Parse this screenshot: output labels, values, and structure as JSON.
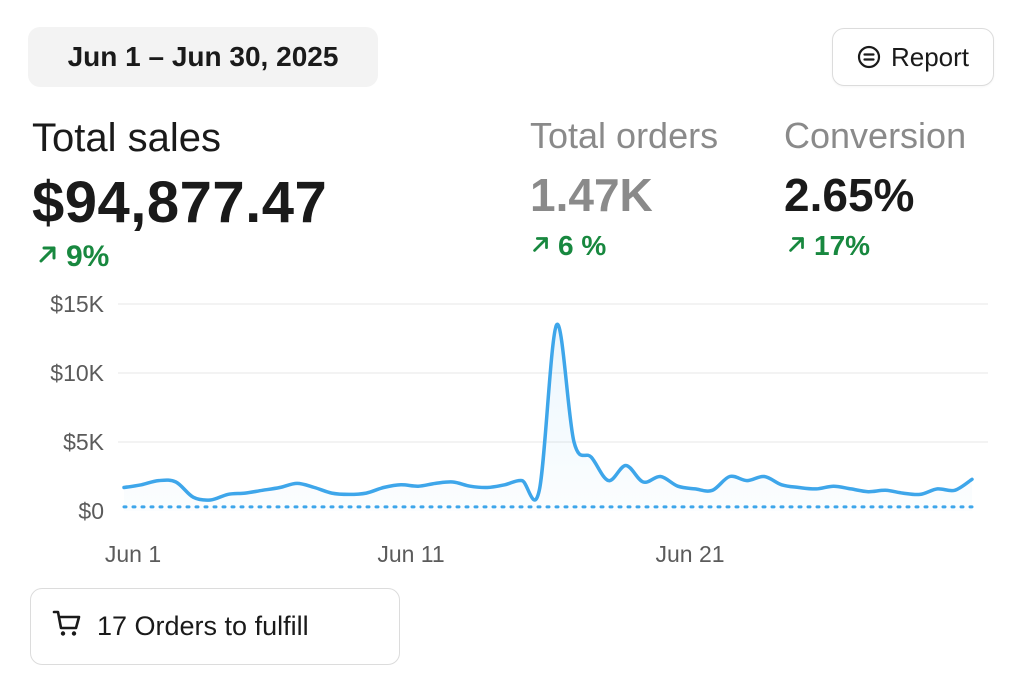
{
  "header": {
    "date_range": "Jun 1 – Jun 30, 2025",
    "report_label": "Report",
    "report_icon": "filter-circle-icon"
  },
  "metrics": {
    "sales": {
      "label": "Total sales",
      "value": "$94,877.47",
      "change": "9%"
    },
    "orders": {
      "label": "Total orders",
      "value": "1.47K",
      "change": "6 %"
    },
    "conversion": {
      "label": "Conversion",
      "value": "2.65%",
      "change": "17%"
    }
  },
  "colors": {
    "accent": "#3ea6ea",
    "positive": "#18883f",
    "muted": "#8a8a8a"
  },
  "chart_data": {
    "type": "line",
    "x_ticks": [
      "Jun 1",
      "Jun 11",
      "Jun 21"
    ],
    "y_ticks": [
      "$0",
      "$5K",
      "$10K",
      "$15K"
    ],
    "ylim": [
      0,
      15000
    ],
    "grid": true,
    "series": [
      {
        "values": [
          1700,
          1900,
          2200,
          2100,
          1000,
          800,
          1200,
          1300,
          1500,
          1700,
          2000,
          1700,
          1300,
          1200,
          1300,
          1700,
          1900,
          1800,
          2000,
          2100,
          1800,
          1700,
          1900,
          2200,
          1500,
          13500,
          5000,
          3900,
          2200,
          3300,
          2100,
          2500,
          1800,
          1600,
          1500,
          2500,
          2200,
          2500,
          1900,
          1700,
          1600,
          1800,
          1600,
          1400,
          1500,
          1300,
          1200,
          1600,
          1500,
          2300
        ]
      },
      {
        "style": "dotted",
        "values": [
          300,
          300,
          300,
          300,
          300,
          300,
          300,
          300,
          300,
          300,
          300,
          300,
          300,
          300,
          300,
          300,
          300,
          300,
          300,
          300,
          300,
          300,
          300,
          300,
          300,
          300,
          300,
          300,
          300,
          300,
          300,
          300,
          300,
          300,
          300,
          300,
          300,
          300,
          300,
          300,
          300,
          300,
          300,
          300,
          300,
          300,
          300,
          300,
          300,
          300
        ]
      }
    ]
  },
  "footer": {
    "fulfill_label": "17 Orders to fulfill",
    "fulfill_icon": "cart-icon"
  }
}
